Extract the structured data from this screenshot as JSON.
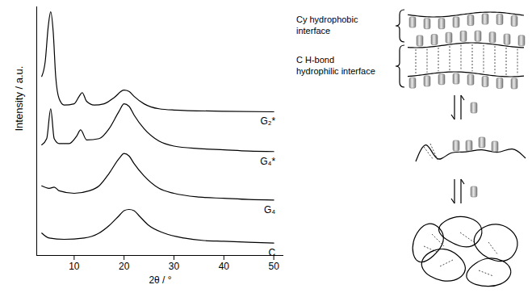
{
  "chart_data": {
    "type": "line",
    "xlabel": "2θ / °",
    "ylabel": "Intensity / a.u.",
    "xlim": [
      2.5,
      52
    ],
    "xticks": [
      10,
      20,
      30,
      40,
      50
    ],
    "ylim": [
      0,
      100
    ],
    "yticks": [],
    "tick_labels": "x",
    "grid": false,
    "series": [
      {
        "name": "G₂*",
        "color": "#000000",
        "x": [
          3.5,
          4.2,
          4.8,
          5.3,
          5.8,
          6.3,
          7,
          8,
          10,
          11,
          11.6,
          12.5,
          14,
          16,
          18,
          20,
          21,
          22,
          24,
          27,
          30,
          40,
          50
        ],
        "values": [
          72,
          78,
          92,
          98,
          90,
          72,
          63,
          60.5,
          61,
          64,
          65.5,
          62,
          60.5,
          61,
          63.5,
          66.5,
          66,
          64,
          61,
          59,
          58.5,
          58,
          57.8
        ]
      },
      {
        "name": "G₄*",
        "color": "#000000",
        "x": [
          3.5,
          4.5,
          5.3,
          6,
          7,
          9,
          10.5,
          11.3,
          12.5,
          15,
          17,
          19,
          20,
          21,
          22,
          24,
          27,
          30,
          35,
          40,
          45,
          50
        ],
        "values": [
          44.5,
          47,
          59,
          47,
          45,
          45,
          48,
          50.5,
          46.5,
          47,
          51,
          58,
          61,
          60,
          56.5,
          51,
          46,
          44,
          43,
          42.5,
          42,
          41.8
        ]
      },
      {
        "name": "G₄",
        "color": "#000000",
        "x": [
          3.5,
          5,
          6,
          7,
          10,
          13,
          15,
          17,
          19,
          20,
          21,
          22,
          24,
          27,
          30,
          35,
          40,
          45,
          50
        ],
        "values": [
          28,
          27,
          27.5,
          26,
          25,
          26,
          28,
          33,
          39,
          41,
          40,
          37,
          32,
          27,
          25,
          23.5,
          23,
          22.5,
          22.3
        ]
      },
      {
        "name": "C",
        "color": "#000000",
        "x": [
          3.5,
          5,
          8,
          12,
          15,
          17,
          19,
          20,
          21,
          22,
          23,
          25,
          28,
          32,
          36,
          40,
          45,
          50
        ],
        "values": [
          9,
          7,
          6.5,
          7,
          9,
          12,
          16,
          18,
          18.5,
          18,
          16,
          12,
          9,
          7,
          6,
          5.7,
          5.3,
          5
        ]
      }
    ]
  },
  "diagram": {
    "labels": [
      {
        "lines": [
          "Cy hydrophobic",
          "interface"
        ]
      },
      {
        "lines": [
          "C H-bond",
          "hydrophilic interface"
        ]
      }
    ]
  }
}
